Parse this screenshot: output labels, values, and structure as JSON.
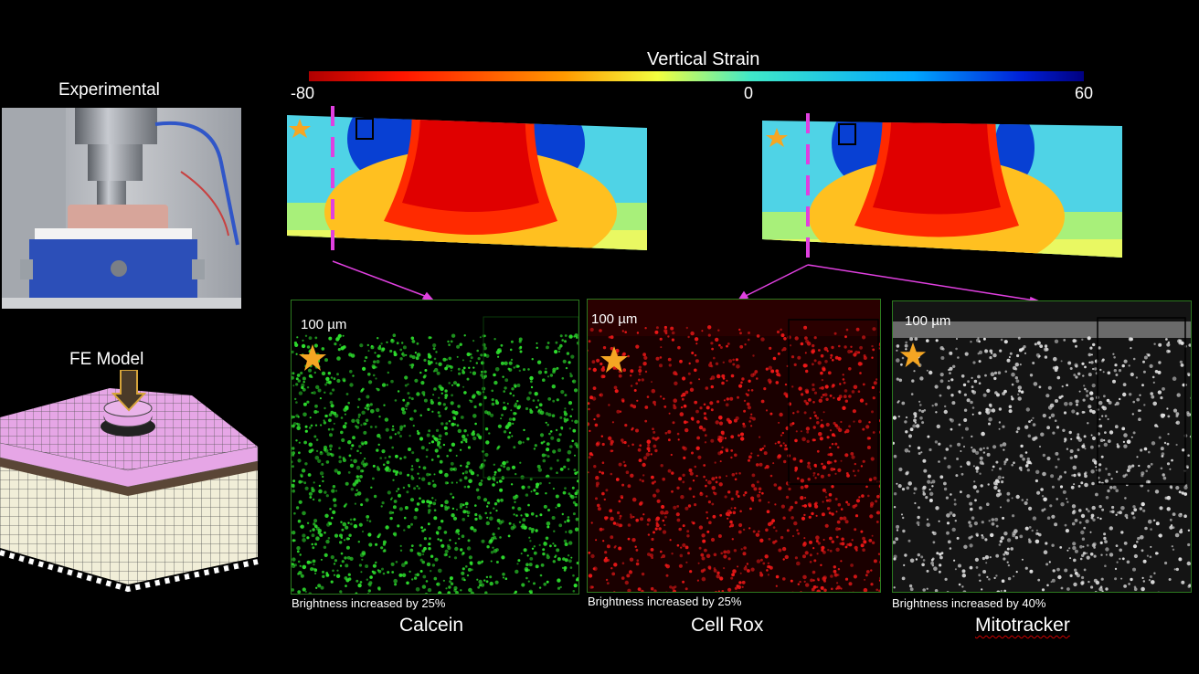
{
  "left": {
    "experimental_label": "Experimental",
    "fe_label": "FE Model"
  },
  "colorbar": {
    "title": "Vertical Strain",
    "ticks": [
      "-80",
      "0",
      "60"
    ],
    "colors": [
      "#c00000",
      "#ff2a00",
      "#ffa000",
      "#ffff40",
      "#40e0d0",
      "#00a0ff",
      "#0000a0"
    ]
  },
  "panels": [
    {
      "scale": "100 µm",
      "brightness": "Brightness increased by 25%",
      "stain": "Calcein",
      "color": "#22dd22"
    },
    {
      "scale": "100 µm",
      "brightness": "Brightness increased by 25%",
      "stain": "Cell Rox",
      "color": "#e01010"
    },
    {
      "scale": "100 µm",
      "brightness": "Brightness increased by 40%",
      "stain": "Mitotracker",
      "color": "#d8d8d8"
    }
  ],
  "accent": {
    "star": "#f5a623",
    "dash": "#e040e0"
  }
}
